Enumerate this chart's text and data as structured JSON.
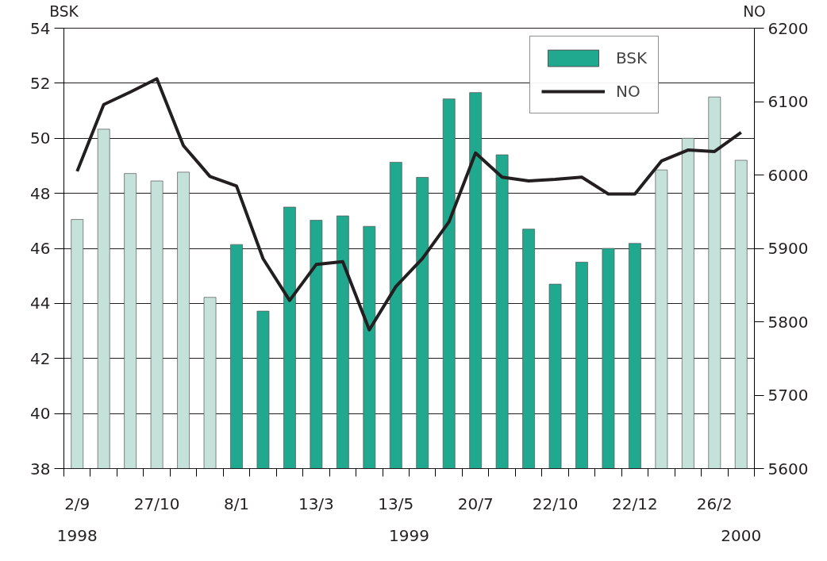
{
  "chart_data": {
    "type": "bar",
    "ylabel": "BSK",
    "y2label": "NO",
    "categories": [
      "2/9",
      null,
      null,
      "27/10",
      null,
      null,
      "8/1",
      null,
      null,
      "13/3",
      null,
      null,
      "13/5",
      null,
      null,
      "20/7",
      null,
      null,
      "22/10",
      null,
      null,
      "22/12",
      null,
      null,
      "26/2",
      null
    ],
    "series": [
      {
        "name": "BSK",
        "color": "#21a98f",
        "colors": [
          "#c5e2da",
          "#c5e2da",
          "#c5e2da",
          "#c5e2da",
          "#c5e2da",
          "#c5e2da",
          "#21a98f",
          "#21a98f",
          "#21a98f",
          "#21a98f",
          "#21a98f",
          "#21a98f",
          "#21a98f",
          "#21a98f",
          "#21a98f",
          "#21a98f",
          "#21a98f",
          "#21a98f",
          "#21a98f",
          "#21a98f",
          "#21a98f",
          "#21a98f",
          "#c5e2da",
          "#c5e2da",
          "#c5e2da",
          "#c5e2da"
        ],
        "values": [
          47.05,
          50.33,
          48.72,
          48.45,
          48.77,
          44.22,
          46.14,
          43.72,
          47.5,
          47.02,
          47.18,
          46.8,
          49.13,
          48.58,
          51.43,
          51.66,
          49.4,
          46.7,
          44.7,
          45.5,
          46.0,
          46.18,
          48.85,
          50.0,
          51.5,
          49.2
        ]
      },
      {
        "name": "NO",
        "type": "line",
        "axis": "y2",
        "color": "#231f20",
        "values": [
          6005,
          6096,
          6113,
          6131,
          6040,
          5998,
          5985,
          5886,
          5829,
          5878,
          5882,
          5789,
          5848,
          5886,
          5936,
          6030,
          5997,
          5992,
          5994,
          5997,
          5974,
          5974,
          6019,
          6034,
          6032,
          6058
        ]
      }
    ],
    "ylim": [
      38,
      54
    ],
    "yticks": [
      38,
      40,
      42,
      44,
      46,
      48,
      50,
      52,
      54
    ],
    "y2lim": [
      5600,
      6200
    ],
    "y2ticks": [
      5600,
      5700,
      5800,
      5900,
      6000,
      6100,
      6200
    ],
    "annotations": [
      "1998",
      "1999",
      "2000"
    ],
    "grid": "y",
    "legend": "top right",
    "line_style": "solid"
  }
}
